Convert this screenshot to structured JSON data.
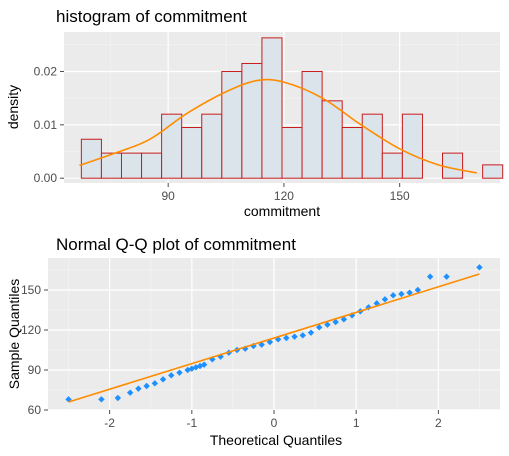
{
  "chart_data": [
    {
      "type": "histogram",
      "title": "histogram of commitment",
      "xlabel": "commitment",
      "ylabel": "density",
      "xlim": [
        63,
        176
      ],
      "ylim": [
        -0.0009,
        0.0274
      ],
      "x_ticks": [
        90,
        120,
        150
      ],
      "x_tick_labels": [
        "90",
        "120",
        "150"
      ],
      "y_ticks": [
        0.0,
        0.01,
        0.02
      ],
      "y_tick_labels": [
        "0.00",
        "0.01",
        "0.02"
      ],
      "bin_start": 67.5,
      "bin_width": 5.2,
      "values": [
        0.0073,
        0.0047,
        0.0047,
        0.0047,
        0.012,
        0.0095,
        0.012,
        0.02,
        0.0215,
        0.0263,
        0.0095,
        0.02,
        0.0145,
        0.0095,
        0.012,
        0.0047,
        0.012,
        0.0,
        0.0047,
        0.0,
        0.0025
      ],
      "bar_fill": "#dbe4ea",
      "bar_stroke": "#c91c1c",
      "density_curve": {
        "x": [
          67,
          75,
          85,
          95,
          105,
          113,
          120,
          130,
          140,
          150,
          160,
          170
        ],
        "y": [
          0.0024,
          0.0044,
          0.0072,
          0.0122,
          0.0162,
          0.0183,
          0.018,
          0.015,
          0.01,
          0.0055,
          0.0025,
          0.001
        ],
        "color": "#ff8c00"
      }
    },
    {
      "type": "scatter",
      "title": "Normal Q-Q plot of commitment",
      "xlabel": "Theoretical Quantiles",
      "ylabel": "Sample Quantiles",
      "xlim": [
        -2.75,
        2.75
      ],
      "ylim": [
        60,
        174
      ],
      "x_ticks": [
        -2,
        -1,
        0,
        1,
        2
      ],
      "x_tick_labels": [
        "-2",
        "-1",
        "0",
        "1",
        "2"
      ],
      "y_ticks": [
        60,
        90,
        120,
        150
      ],
      "y_tick_labels": [
        "60",
        "90",
        "120",
        "150"
      ],
      "point_color": "#1e90ff",
      "points": {
        "x": [
          -2.5,
          -2.1,
          -1.9,
          -1.75,
          -1.65,
          -1.55,
          -1.45,
          -1.35,
          -1.25,
          -1.15,
          -1.05,
          -1.0,
          -0.95,
          -0.9,
          -0.85,
          -0.75,
          -0.65,
          -0.55,
          -0.45,
          -0.35,
          -0.25,
          -0.15,
          -0.05,
          0.05,
          0.15,
          0.25,
          0.35,
          0.45,
          0.55,
          0.65,
          0.75,
          0.85,
          0.95,
          1.05,
          1.15,
          1.25,
          1.35,
          1.45,
          1.55,
          1.65,
          1.75,
          1.9,
          2.1,
          2.5
        ],
        "y": [
          68,
          68,
          69,
          73,
          76,
          78,
          80,
          83,
          86,
          88,
          90,
          91,
          92,
          93,
          94,
          98,
          100,
          103,
          105,
          106,
          108,
          109,
          111,
          113,
          114,
          115,
          116,
          118,
          122,
          124,
          126,
          128,
          131,
          134,
          137,
          140,
          143,
          146,
          147,
          148,
          150,
          160,
          160,
          167
        ]
      },
      "reference_line": {
        "x": [
          -2.5,
          2.5
        ],
        "y": [
          66,
          162
        ],
        "color": "#ff8c00"
      }
    }
  ]
}
